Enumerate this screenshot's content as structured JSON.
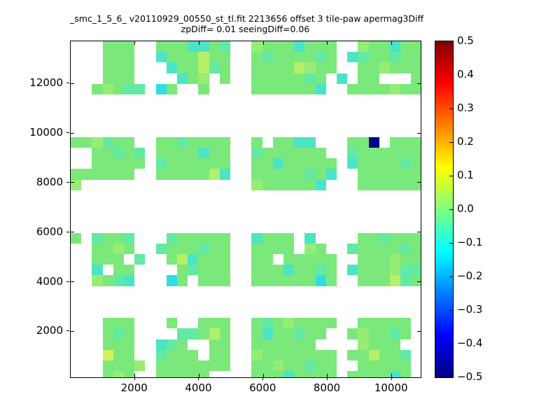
{
  "title_line1": "_smc_1_5_6_ v20110929_00550_st_tl.fit 2213656 offset 3 tile-paw apermag3Diff",
  "title_line2": "zpDiff= 0.01 seeingDiff=0.06",
  "chart_data": {
    "type": "heatmap",
    "title": "_smc_1_5_6_ v20110929_00550_st_tl.fit 2213656 offset 3 tile-paw apermag3Diff\nzpDiff= 0.01 seeingDiff=0.06",
    "xlabel": "",
    "ylabel": "",
    "grid": false,
    "x_range": [
      0,
      10900
    ],
    "y_range": [
      150,
      13700
    ],
    "x_ticks": [
      2000,
      4000,
      6000,
      8000,
      10000
    ],
    "x_tick_labels": [
      "2000",
      "4000",
      "6000",
      "8000",
      "10000"
    ],
    "y_ticks": [
      2000,
      4000,
      6000,
      8000,
      10000,
      12000
    ],
    "y_tick_labels": [
      "2000",
      "4000",
      "6000",
      "8000",
      "10000",
      "12000"
    ],
    "colorbar": {
      "min": -0.5,
      "max": 0.5,
      "colormap": "jet",
      "tick_values": [
        0.5,
        0.4,
        0.3,
        0.2,
        0.1,
        0.0,
        -0.1,
        -0.2,
        -0.3,
        -0.4,
        -0.5
      ],
      "tick_labels": [
        "0.5",
        "0.4",
        "0.3",
        "0.2",
        "0.1",
        "0.0",
        "−0.1",
        "−0.2",
        "−0.3",
        "−0.4",
        "−0.5"
      ],
      "gradient_stops_top_to_bottom": [
        {
          "pos": 0,
          "color": "#800000"
        },
        {
          "pos": 12.5,
          "color": "#ff0000"
        },
        {
          "pos": 37.5,
          "color": "#ffff00"
        },
        {
          "pos": 62.5,
          "color": "#00ffff"
        },
        {
          "pos": 87.5,
          "color": "#0000ff"
        },
        {
          "pos": 100,
          "color": "#000080"
        }
      ]
    },
    "cell_size_px": 15.2,
    "palette": {
      "g": {
        "color": "#7BE87B",
        "value": 0.01
      },
      "G": {
        "color": "#97ED74",
        "value": 0.04
      },
      "y": {
        "color": "#B5F068",
        "value": 0.08
      },
      "Y": {
        "color": "#D3F25C",
        "value": 0.13
      },
      "c": {
        "color": "#62E9A4",
        "value": -0.04
      },
      "C": {
        "color": "#4BE4C6",
        "value": -0.09
      },
      "T": {
        "color": "#32DCE2",
        "value": -0.14
      },
      "N": {
        "color": "#000089",
        "value": -0.45
      }
    },
    "empty_char": ".",
    "grid_rows": [
      "...ggg..gggCCgc..GgggCggg..GggCgg",
      "...ggg..Cgggygg..gcggggcg.Ccggcgg",
      "...ggg...Cggycg..ggggyGgg..ggGggg",
      "...ggg....CgG.g..gggggcg.C.gg...g",
      "..gGgcc.Tg..g....ggggggC..ggggGgg",
      ".................................",
      ".................................",
      ".................................",
      ".................................",
      "ggGcgg..ggcgggg..g.ggCC...ggN.ggg",
      "..ggcgc.ggggCgg..cgggggg..cgggggg",
      "..ggggg.cgggggg..ggCggggg.Cggggcg",
      "gggggg..gggggyC..gggggcgC..gggggg",
      "G................GgggggC...gggggg",
      ".................................",
      ".................................",
      ".................................",
      ".................................",
      "g.cggc...cggggg..Cggg.C....ggcggg",
      "..ggGg..cgggcgg..gggg.Gg..cggggcg",
      "..ggg.c..gyCggg..gg.ggggg..gggGgg",
      "..C.gg....gcggg..gggCggcg.CgggGcc",
      "..GgcC...Tg.ggg..ggggggTg..gggycg",
      ".................................",
      ".................................",
      ".................................",
      "...ggg...g..ggg..gcgGgggg..ggggg.",
      "...gcg....ccgyg..gCggcgg..gGggcg.",
      "...ggg..Ccg..gg..gggggg....Gggg..",
      "...Ygg..cggg.gg..Gggggggg.ggyggc.",
      "...gggG.ggggggg..ggGggcgg..ggggg.",
      "...gGg..ggggg....gggCgggg.ggggCg."
    ]
  }
}
